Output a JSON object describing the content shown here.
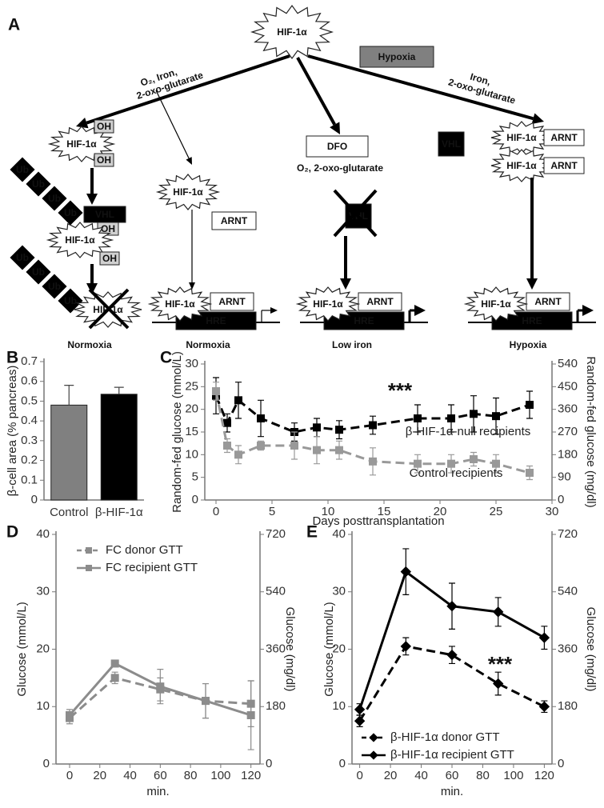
{
  "diagram": {
    "panel": "A",
    "hypoxia": "Hypoxia",
    "labels": {
      "hif": "HIF-1α",
      "oh": "OH",
      "ub": "Ub",
      "vhl": "VHL",
      "arnt": "ARNT",
      "hre": "HRE",
      "dfo": "DFO"
    },
    "conditions": [
      [
        "O₂, Iron,",
        "2-oxo-glutarate"
      ],
      [
        "Iron,",
        "2-oxo-glutarate"
      ]
    ],
    "dfo_condition": "O₂, 2-oxo-glutarate",
    "captions": [
      "Normoxia",
      "Normoxia",
      "Low iron",
      "Hypoxia"
    ]
  },
  "chart_data": [
    {
      "type": "bar",
      "panel": "B",
      "ylabel": "β-cell area (% pancreas)",
      "categories": [
        "Control",
        "β-HIF-1α"
      ],
      "values": [
        0.48,
        0.535
      ],
      "errors": [
        0.1,
        0.035
      ],
      "colors": [
        "#808080",
        "#000000"
      ],
      "ylim": [
        0,
        0.7
      ],
      "yticks": [
        0,
        0.1,
        0.2,
        0.3,
        0.4,
        0.5,
        0.6,
        0.7
      ]
    },
    {
      "type": "line",
      "panel": "C",
      "xlabel": "Days posttransplantation",
      "ylabel": "Random-fed glucose (mmol/L)",
      "y2label": "Random-fed glucose (mg/dl)",
      "annotation": "***",
      "x": [
        0,
        1,
        2,
        4,
        7,
        9,
        11,
        14,
        18,
        21,
        23,
        25,
        28
      ],
      "xlim": [
        -1,
        30
      ],
      "xticks": [
        0,
        5,
        10,
        15,
        20,
        25,
        30
      ],
      "ylim": [
        0,
        30
      ],
      "yticks": [
        0,
        5,
        10,
        15,
        20,
        25,
        30
      ],
      "y2lim": [
        0,
        540
      ],
      "y2ticks": [
        0,
        90,
        180,
        270,
        360,
        450,
        540
      ],
      "series": [
        {
          "name": "β-HIF-1α-null recipients",
          "color": "#000000",
          "dash": true,
          "marker": "square",
          "values": [
            23,
            17,
            22,
            18,
            15,
            16,
            15.5,
            16.5,
            18,
            18,
            19,
            18.5,
            21
          ],
          "errors": [
            4,
            2,
            4,
            4,
            2,
            2,
            2,
            2,
            3,
            3,
            4,
            4,
            3
          ]
        },
        {
          "name": "Control recipients",
          "color": "#999999",
          "dash": true,
          "marker": "square",
          "values": [
            24,
            12,
            10,
            12,
            12,
            11,
            11,
            8.5,
            8,
            8,
            9,
            8,
            6
          ],
          "errors": [
            2,
            1.5,
            2,
            1,
            3,
            3,
            2,
            3,
            2,
            2,
            1.5,
            2,
            1.5
          ]
        }
      ]
    },
    {
      "type": "line",
      "panel": "D",
      "xlabel": "min.",
      "ylabel": "Glucose (mmol/L)",
      "y2label": "Glucose (mg/dl)",
      "x": [
        0,
        30,
        60,
        90,
        120
      ],
      "xlim": [
        -9,
        126
      ],
      "xticks": [
        0,
        20,
        40,
        60,
        80,
        100,
        120
      ],
      "ylim": [
        0,
        40
      ],
      "yticks": [
        0,
        10,
        20,
        30,
        40
      ],
      "y2lim": [
        0,
        720
      ],
      "y2ticks": [
        0,
        180,
        360,
        540,
        720
      ],
      "legend": "upper left",
      "series": [
        {
          "name": "FC donor GTT",
          "color": "#8c8c8c",
          "dash": true,
          "marker": "square",
          "values": [
            8,
            15,
            13,
            11,
            10.5
          ],
          "errors": [
            1,
            1,
            2,
            3,
            4
          ]
        },
        {
          "name": "FC recipient GTT",
          "color": "#8c8c8c",
          "dash": false,
          "marker": "square",
          "values": [
            8.5,
            17.5,
            13.5,
            11,
            8.5
          ],
          "errors": [
            1,
            0.5,
            3,
            3,
            6
          ]
        }
      ]
    },
    {
      "type": "line",
      "panel": "E",
      "xlabel": "min.",
      "ylabel": "Glucose (mmol/L)",
      "y2label": "Glucose (mg/dl)",
      "annotation": "***",
      "x": [
        0,
        30,
        60,
        90,
        120
      ],
      "xlim": [
        -5,
        125
      ],
      "xticks": [
        0,
        20,
        40,
        60,
        80,
        100,
        120
      ],
      "ylim": [
        0,
        40
      ],
      "yticks": [
        0,
        10,
        20,
        30,
        40
      ],
      "y2lim": [
        0,
        720
      ],
      "y2ticks": [
        0,
        180,
        360,
        540,
        720
      ],
      "legend": "lower left",
      "series": [
        {
          "name": "β-HIF-1α donor GTT",
          "color": "#000000",
          "dash": true,
          "marker": "diamond",
          "values": [
            7.5,
            20.5,
            19,
            14,
            10
          ],
          "errors": [
            1,
            1.5,
            1.5,
            2,
            1
          ]
        },
        {
          "name": "β-HIF-1α recipient GTT",
          "color": "#000000",
          "dash": false,
          "marker": "diamond",
          "values": [
            9.5,
            33.5,
            27.5,
            26.5,
            22
          ],
          "errors": [
            1,
            4,
            4,
            2.5,
            2
          ]
        }
      ]
    }
  ]
}
